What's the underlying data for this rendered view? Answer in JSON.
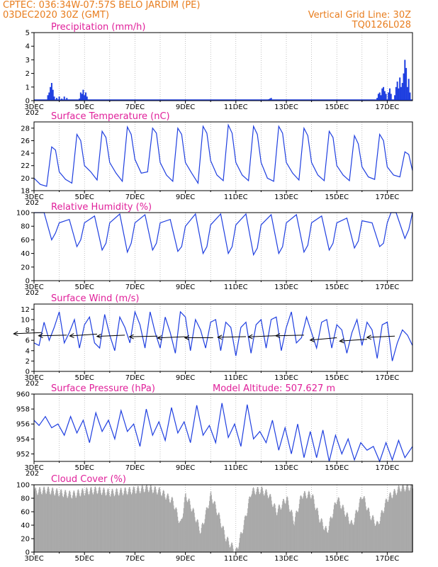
{
  "header": {
    "line1_left": "CPTEC:   036:34W-07:57S  BELO JARDIM (PE)",
    "line2_left": "03DEC2020 30Z (GMT)",
    "line1_right": "Vertical Grid Line: 30Z",
    "line2_right": "TQ0126L028"
  },
  "colors": {
    "line": "#1f3fe0",
    "title": "#e0209a",
    "header": "#e87d1e",
    "cloud": "#a9a9a9",
    "bars": "#1f3fe0"
  },
  "x_axis": {
    "ticks": [
      "3DEC",
      "5DEC",
      "7DEC",
      "9DEC",
      "11DEC",
      "13DEC",
      "15DEC",
      "17DEC"
    ],
    "sub_label": "202"
  },
  "chart_data": [
    {
      "type": "bar",
      "title": "Precipitation (mm/h)",
      "ylim": [
        0,
        5
      ],
      "yticks": [
        0,
        1,
        2,
        3,
        4,
        5
      ],
      "x_range_days": [
        0,
        15
      ],
      "events": [
        {
          "day": 0.55,
          "value": 0.4
        },
        {
          "day": 0.6,
          "value": 0.6
        },
        {
          "day": 0.65,
          "value": 1.0
        },
        {
          "day": 0.7,
          "value": 1.3
        },
        {
          "day": 0.75,
          "value": 0.8
        },
        {
          "day": 0.8,
          "value": 0.3
        },
        {
          "day": 0.9,
          "value": 0.2
        },
        {
          "day": 1.0,
          "value": 0.3
        },
        {
          "day": 1.1,
          "value": 0.15
        },
        {
          "day": 1.2,
          "value": 0.3
        },
        {
          "day": 1.3,
          "value": 0.2
        },
        {
          "day": 1.8,
          "value": 0.15
        },
        {
          "day": 1.85,
          "value": 0.6
        },
        {
          "day": 1.9,
          "value": 0.5
        },
        {
          "day": 1.95,
          "value": 0.8
        },
        {
          "day": 2.0,
          "value": 0.4
        },
        {
          "day": 2.05,
          "value": 0.6
        },
        {
          "day": 2.1,
          "value": 0.3
        },
        {
          "day": 9.3,
          "value": 0.1
        },
        {
          "day": 9.35,
          "value": 0.15
        },
        {
          "day": 9.4,
          "value": 0.2
        },
        {
          "day": 13.6,
          "value": 0.2
        },
        {
          "day": 13.65,
          "value": 0.5
        },
        {
          "day": 13.7,
          "value": 0.6
        },
        {
          "day": 13.75,
          "value": 0.4
        },
        {
          "day": 13.8,
          "value": 0.9
        },
        {
          "day": 13.85,
          "value": 1.0
        },
        {
          "day": 13.9,
          "value": 0.7
        },
        {
          "day": 13.95,
          "value": 0.5
        },
        {
          "day": 14.05,
          "value": 0.6
        },
        {
          "day": 14.1,
          "value": 0.9
        },
        {
          "day": 14.15,
          "value": 0.5
        },
        {
          "day": 14.3,
          "value": 0.4
        },
        {
          "day": 14.35,
          "value": 1.0
        },
        {
          "day": 14.4,
          "value": 1.4
        },
        {
          "day": 14.45,
          "value": 0.9
        },
        {
          "day": 14.5,
          "value": 1.7
        },
        {
          "day": 14.55,
          "value": 1.0
        },
        {
          "day": 14.6,
          "value": 1.3
        },
        {
          "day": 14.65,
          "value": 2.0
        },
        {
          "day": 14.7,
          "value": 3.0
        },
        {
          "day": 14.75,
          "value": 2.4
        },
        {
          "day": 14.8,
          "value": 1.0
        },
        {
          "day": 14.85,
          "value": 1.6
        },
        {
          "day": 14.9,
          "value": 0.6
        }
      ]
    },
    {
      "type": "line",
      "title": "Surface Temperature (nC)",
      "ylim": [
        18,
        29
      ],
      "yticks": [
        18,
        20,
        22,
        24,
        26,
        28
      ],
      "x_range_days": [
        0,
        15
      ],
      "x": [
        0,
        0.25,
        0.5,
        0.7,
        0.85,
        1.0,
        1.25,
        1.5,
        1.7,
        1.85,
        2.0,
        2.25,
        2.5,
        2.7,
        2.85,
        3.0,
        3.25,
        3.5,
        3.7,
        3.85,
        4.0,
        4.25,
        4.5,
        4.7,
        4.85,
        5.0,
        5.25,
        5.5,
        5.7,
        5.85,
        6.0,
        6.25,
        6.5,
        6.7,
        6.85,
        7.0,
        7.25,
        7.5,
        7.7,
        7.85,
        8.0,
        8.25,
        8.5,
        8.7,
        8.85,
        9.0,
        9.25,
        9.5,
        9.7,
        9.85,
        10.0,
        10.25,
        10.5,
        10.7,
        10.85,
        11.0,
        11.25,
        11.5,
        11.7,
        11.85,
        12.0,
        12.25,
        12.5,
        12.7,
        12.85,
        13.0,
        13.25,
        13.5,
        13.7,
        13.85,
        14.0,
        14.25,
        14.5,
        14.7,
        14.85,
        15.0
      ],
      "y": [
        20.0,
        19.0,
        18.7,
        25.0,
        24.5,
        21.0,
        19.8,
        19.2,
        27.0,
        26.0,
        22.0,
        21.0,
        19.7,
        27.5,
        26.5,
        22.5,
        20.8,
        19.5,
        28.2,
        27.0,
        23.0,
        20.8,
        21.0,
        28.0,
        27.2,
        22.5,
        20.5,
        19.5,
        28.0,
        27.0,
        22.5,
        20.8,
        19.2,
        28.3,
        27.2,
        22.8,
        20.5,
        19.6,
        28.5,
        27.2,
        22.5,
        20.5,
        19.6,
        28.3,
        27.0,
        22.5,
        20.0,
        19.5,
        28.3,
        27.2,
        22.5,
        20.8,
        19.7,
        28.0,
        26.8,
        22.5,
        20.5,
        19.6,
        27.5,
        26.5,
        22.0,
        20.5,
        19.6,
        26.8,
        25.5,
        21.8,
        20.2,
        19.8,
        27.0,
        26.0,
        21.8,
        20.5,
        20.2,
        24.2,
        23.8,
        21.2
      ]
    },
    {
      "type": "line",
      "title": "Relative Humidity (%)",
      "ylim": [
        0,
        100
      ],
      "yticks": [
        0,
        20,
        40,
        60,
        80,
        100
      ],
      "x_range_days": [
        0,
        15
      ],
      "x": [
        0,
        0.15,
        0.4,
        0.7,
        0.85,
        1.0,
        1.4,
        1.7,
        1.85,
        2.0,
        2.4,
        2.7,
        2.85,
        3.0,
        3.4,
        3.7,
        3.85,
        4.0,
        4.4,
        4.7,
        4.85,
        5.0,
        5.4,
        5.7,
        5.85,
        6.0,
        6.4,
        6.7,
        6.85,
        7.0,
        7.4,
        7.7,
        7.85,
        8.0,
        8.4,
        8.7,
        8.85,
        9.0,
        9.4,
        9.7,
        9.85,
        10.0,
        10.4,
        10.7,
        10.85,
        11.0,
        11.4,
        11.7,
        11.85,
        12.0,
        12.4,
        12.7,
        12.85,
        13.0,
        13.4,
        13.7,
        13.85,
        14.0,
        14.15,
        14.35,
        14.7,
        14.85,
        15.0
      ],
      "y": [
        100,
        100,
        100,
        60,
        70,
        85,
        90,
        50,
        60,
        85,
        95,
        45,
        55,
        85,
        98,
        42,
        55,
        85,
        97,
        45,
        55,
        85,
        90,
        43,
        50,
        80,
        98,
        40,
        50,
        82,
        98,
        40,
        50,
        82,
        98,
        38,
        48,
        82,
        97,
        40,
        50,
        85,
        97,
        42,
        52,
        85,
        95,
        45,
        55,
        85,
        92,
        48,
        58,
        88,
        85,
        50,
        55,
        85,
        100,
        100,
        62,
        75,
        100
      ]
    },
    {
      "type": "line",
      "title": "Surface Wind (m/s)",
      "ylim": [
        0,
        13
      ],
      "yticks": [
        0,
        2,
        4,
        6,
        8,
        10,
        12
      ],
      "x_range_days": [
        0,
        15
      ],
      "x": [
        0,
        0.2,
        0.4,
        0.6,
        0.8,
        1.0,
        1.2,
        1.4,
        1.6,
        1.8,
        2.0,
        2.2,
        2.4,
        2.6,
        2.8,
        3.0,
        3.2,
        3.4,
        3.6,
        3.8,
        4.0,
        4.2,
        4.4,
        4.6,
        4.8,
        5.0,
        5.2,
        5.4,
        5.6,
        5.8,
        6.0,
        6.2,
        6.4,
        6.6,
        6.8,
        7.0,
        7.2,
        7.4,
        7.6,
        7.8,
        8.0,
        8.2,
        8.4,
        8.6,
        8.8,
        9.0,
        9.2,
        9.4,
        9.6,
        9.8,
        10.0,
        10.2,
        10.4,
        10.6,
        10.8,
        11.0,
        11.2,
        11.4,
        11.6,
        11.8,
        12.0,
        12.2,
        12.4,
        12.6,
        12.8,
        13.0,
        13.2,
        13.4,
        13.6,
        13.8,
        14.0,
        14.2,
        14.4,
        14.6,
        14.8,
        15.0
      ],
      "y": [
        5.5,
        5.0,
        9.5,
        6.0,
        8.5,
        11.5,
        5.5,
        7.5,
        10.0,
        4.5,
        9.0,
        10.5,
        5.5,
        4.5,
        11.0,
        7.0,
        4.0,
        10.5,
        8.5,
        5.5,
        11.5,
        9.0,
        4.5,
        11.5,
        7.5,
        4.5,
        10.5,
        7.5,
        3.5,
        11.5,
        10.5,
        4.0,
        10.0,
        8.0,
        4.5,
        9.5,
        10.0,
        4.0,
        9.5,
        8.5,
        3.0,
        8.5,
        9.5,
        3.5,
        9.0,
        10.0,
        4.5,
        10.0,
        10.5,
        4.0,
        8.5,
        11.5,
        5.5,
        6.5,
        10.5,
        7.5,
        4.5,
        9.5,
        10.0,
        4.5,
        9.0,
        8.0,
        3.5,
        7.5,
        10.0,
        5.0,
        9.5,
        8.0,
        2.5,
        9.0,
        9.5,
        2.0,
        5.5,
        8.0,
        7.0,
        5.0
      ],
      "wind_arrows": [
        {
          "day": 0.3,
          "dir_deg": 100,
          "speed": 7.5
        },
        {
          "day": 1.3,
          "dir_deg": 95,
          "speed": 7.0
        },
        {
          "day": 2.5,
          "dir_deg": 105,
          "speed": 7.2
        },
        {
          "day": 3.6,
          "dir_deg": 100,
          "speed": 7.0
        },
        {
          "day": 4.9,
          "dir_deg": 95,
          "speed": 6.8
        },
        {
          "day": 6.0,
          "dir_deg": 100,
          "speed": 6.7
        },
        {
          "day": 7.1,
          "dir_deg": 90,
          "speed": 6.5
        },
        {
          "day": 8.4,
          "dir_deg": 95,
          "speed": 6.7
        },
        {
          "day": 9.6,
          "dir_deg": 100,
          "speed": 6.9
        },
        {
          "day": 10.7,
          "dir_deg": 95,
          "speed": 7.0
        },
        {
          "day": 12.0,
          "dir_deg": 110,
          "speed": 6.5
        },
        {
          "day": 13.2,
          "dir_deg": 105,
          "speed": 6.2
        },
        {
          "day": 14.3,
          "dir_deg": 100,
          "speed": 6.8
        }
      ]
    },
    {
      "type": "line",
      "title": "Surface Pressure (hPa)",
      "annotation": "Model Altitude: 507.627 m",
      "ylim": [
        951,
        960
      ],
      "yticks": [
        952,
        954,
        956,
        958,
        960
      ],
      "x_range_days": [
        0,
        15
      ],
      "x": [
        0,
        0.2,
        0.45,
        0.7,
        0.95,
        1.2,
        1.45,
        1.7,
        1.95,
        2.2,
        2.45,
        2.7,
        2.95,
        3.2,
        3.45,
        3.7,
        3.95,
        4.2,
        4.45,
        4.7,
        4.95,
        5.2,
        5.45,
        5.7,
        5.95,
        6.2,
        6.45,
        6.7,
        6.95,
        7.2,
        7.45,
        7.7,
        7.95,
        8.2,
        8.45,
        8.7,
        8.95,
        9.2,
        9.45,
        9.7,
        9.95,
        10.2,
        10.45,
        10.7,
        10.95,
        11.2,
        11.45,
        11.7,
        11.95,
        12.2,
        12.45,
        12.7,
        12.95,
        13.2,
        13.45,
        13.7,
        13.95,
        14.2,
        14.45,
        14.7,
        15.0
      ],
      "y": [
        956.5,
        955.8,
        957.0,
        955.5,
        956.0,
        954.5,
        957.0,
        954.8,
        956.5,
        953.5,
        957.5,
        955.0,
        956.5,
        954.0,
        957.8,
        955.0,
        956.0,
        953.0,
        958.0,
        954.5,
        956.3,
        953.8,
        958.2,
        954.8,
        956.3,
        953.5,
        958.5,
        954.5,
        955.8,
        953.5,
        958.8,
        954.2,
        956.0,
        953.0,
        958.6,
        954.0,
        955.0,
        953.5,
        956.5,
        952.5,
        955.5,
        952.0,
        956.0,
        951.5,
        955.0,
        951.5,
        955.2,
        951.0,
        954.5,
        952.0,
        954.0,
        951.2,
        953.5,
        952.5,
        953.0,
        951.0,
        953.5,
        951.2,
        953.8,
        951.5,
        953.0
      ]
    },
    {
      "type": "bar",
      "title": "Cloud Cover (%)",
      "ylim": [
        0,
        100
      ],
      "yticks": [
        0,
        20,
        40,
        60,
        80,
        100
      ],
      "x_range_days": [
        0,
        15
      ],
      "x": [
        0,
        0.5,
        1.0,
        1.5,
        2.0,
        2.5,
        3.0,
        3.5,
        4.0,
        4.5,
        5.0,
        5.5,
        5.8,
        6.0,
        6.3,
        6.6,
        7.0,
        7.3,
        7.6,
        8.0,
        8.3,
        8.6,
        9.0,
        9.3,
        9.6,
        10.0,
        10.3,
        10.6,
        11.0,
        11.3,
        11.6,
        12.0,
        12.3,
        12.6,
        13.0,
        13.3,
        13.6,
        14.0,
        14.5,
        15.0
      ],
      "y": [
        90,
        92,
        88,
        85,
        90,
        92,
        88,
        90,
        92,
        95,
        90,
        75,
        40,
        85,
        60,
        30,
        85,
        55,
        20,
        0,
        40,
        90,
        92,
        85,
        60,
        80,
        45,
        85,
        85,
        50,
        30,
        80,
        60,
        40,
        85,
        55,
        40,
        80,
        95,
        97
      ]
    }
  ]
}
